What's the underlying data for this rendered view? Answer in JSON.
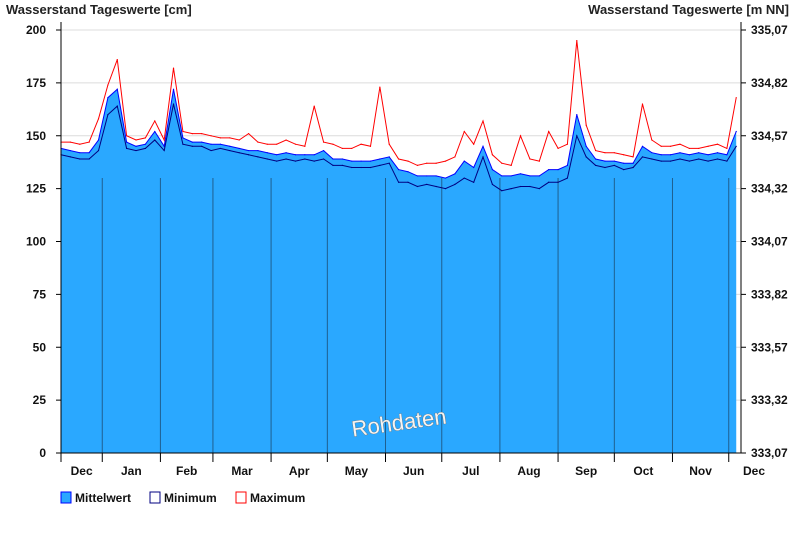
{
  "chart_data": {
    "type": "area",
    "title_left": "Wasserstand Tageswerte [cm]",
    "title_right": "Wasserstand Tageswerte [m NN]",
    "ylim": [
      0,
      200
    ],
    "yticks": [
      "0",
      "25",
      "50",
      "75",
      "100",
      "125",
      "150",
      "175",
      "200"
    ],
    "yticks_right": [
      "333,07",
      "333,32",
      "333,57",
      "333,82",
      "334,07",
      "334,32",
      "334,57",
      "334,82",
      "335,07"
    ],
    "months": [
      "Dec",
      "Jan",
      "Feb",
      "Mar",
      "Apr",
      "May",
      "Jun",
      "Jul",
      "Aug",
      "Sep",
      "Oct",
      "Nov",
      "Dec"
    ],
    "grid": true,
    "watermark": "Rohdaten",
    "legend_position": "bottom-left",
    "x": [
      "Dec 10",
      "Dec 15",
      "Dec 20",
      "Dec 25",
      "Dec 30",
      "Jan 4",
      "Jan 9",
      "Jan 14",
      "Jan 19",
      "Jan 24",
      "Jan 29",
      "Feb 3",
      "Feb 8",
      "Feb 13",
      "Feb 18",
      "Feb 23",
      "Feb 28",
      "Mar 5",
      "Mar 10",
      "Mar 15",
      "Mar 20",
      "Mar 25",
      "Mar 30",
      "Apr 4",
      "Apr 9",
      "Apr 14",
      "Apr 19",
      "Apr 24",
      "Apr 29",
      "May 4",
      "May 9",
      "May 14",
      "May 19",
      "May 24",
      "May 29",
      "Jun 3",
      "Jun 8",
      "Jun 13",
      "Jun 18",
      "Jun 23",
      "Jun 28",
      "Jul 3",
      "Jul 8",
      "Jul 13",
      "Jul 18",
      "Jul 23",
      "Jul 28",
      "Aug 2",
      "Aug 7",
      "Aug 12",
      "Aug 17",
      "Aug 22",
      "Aug 27",
      "Sep 1",
      "Sep 6",
      "Sep 11",
      "Sep 16",
      "Sep 21",
      "Sep 26",
      "Oct 1",
      "Oct 6",
      "Oct 11",
      "Oct 16",
      "Oct 21",
      "Oct 26",
      "Oct 31",
      "Nov 5",
      "Nov 10",
      "Nov 15",
      "Nov 20",
      "Nov 25",
      "Nov 30",
      "Dec 5"
    ],
    "series": [
      {
        "name": "Mittelwert",
        "color": "#2aa8ff",
        "edge": "#0000ff",
        "values": [
          144,
          143,
          142,
          142,
          148,
          168,
          172,
          147,
          145,
          146,
          152,
          145,
          172,
          149,
          147,
          147,
          146,
          146,
          145,
          144,
          143,
          143,
          142,
          141,
          142,
          141,
          141,
          141,
          143,
          139,
          139,
          138,
          138,
          138,
          139,
          140,
          134,
          133,
          131,
          131,
          131,
          130,
          132,
          138,
          135,
          145,
          134,
          131,
          131,
          132,
          131,
          131,
          134,
          134,
          136,
          160,
          145,
          139,
          138,
          138,
          137,
          137,
          145,
          142,
          141,
          141,
          142,
          141,
          142,
          141,
          142,
          141,
          152
        ]
      },
      {
        "name": "Minimum",
        "color": "#000080",
        "values": [
          141,
          140,
          139,
          139,
          143,
          160,
          164,
          144,
          143,
          144,
          148,
          143,
          165,
          146,
          145,
          145,
          143,
          144,
          143,
          142,
          141,
          140,
          139,
          138,
          139,
          138,
          139,
          138,
          139,
          136,
          136,
          135,
          135,
          135,
          136,
          137,
          128,
          128,
          126,
          127,
          126,
          125,
          127,
          130,
          128,
          140,
          127,
          124,
          125,
          126,
          126,
          125,
          128,
          128,
          130,
          150,
          140,
          136,
          135,
          136,
          134,
          135,
          140,
          139,
          138,
          138,
          139,
          138,
          139,
          138,
          139,
          138,
          145
        ]
      },
      {
        "name": "Maximum",
        "color": "#ff0000",
        "values": [
          147,
          147,
          146,
          147,
          158,
          174,
          186,
          150,
          148,
          149,
          157,
          148,
          182,
          152,
          151,
          151,
          150,
          149,
          149,
          148,
          151,
          147,
          146,
          146,
          148,
          146,
          145,
          164,
          147,
          146,
          144,
          144,
          146,
          145,
          173,
          146,
          139,
          138,
          136,
          137,
          137,
          138,
          140,
          152,
          146,
          157,
          141,
          137,
          136,
          150,
          139,
          138,
          152,
          144,
          146,
          195,
          155,
          143,
          142,
          142,
          141,
          140,
          165,
          148,
          145,
          145,
          146,
          144,
          144,
          145,
          146,
          144,
          168
        ]
      }
    ]
  }
}
